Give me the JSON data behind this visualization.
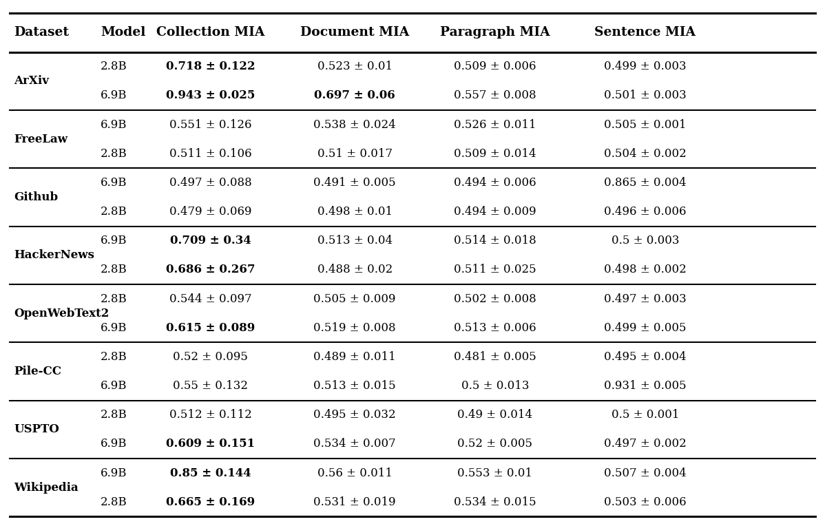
{
  "columns": [
    "Dataset",
    "Model",
    "Collection MIA",
    "Document MIA",
    "Paragraph MIA",
    "Sentence MIA"
  ],
  "rows": [
    {
      "dataset": "ArXiv",
      "entries": [
        {
          "model": "2.8B",
          "collection_mia": "0.718 ± 0.122",
          "collection_bold": true,
          "document_mia": "0.523 ± 0.01",
          "document_bold": false,
          "paragraph_mia": "0.509 ± 0.006",
          "paragraph_bold": false,
          "sentence_mia": "0.499 ± 0.003",
          "sentence_bold": false
        },
        {
          "model": "6.9B",
          "collection_mia": "0.943 ± 0.025",
          "collection_bold": true,
          "document_mia": "0.697 ± 0.06",
          "document_bold": true,
          "paragraph_mia": "0.557 ± 0.008",
          "paragraph_bold": false,
          "sentence_mia": "0.501 ± 0.003",
          "sentence_bold": false
        }
      ]
    },
    {
      "dataset": "FreeLaw",
      "entries": [
        {
          "model": "6.9B",
          "collection_mia": "0.551 ± 0.126",
          "collection_bold": false,
          "document_mia": "0.538 ± 0.024",
          "document_bold": false,
          "paragraph_mia": "0.526 ± 0.011",
          "paragraph_bold": false,
          "sentence_mia": "0.505 ± 0.001",
          "sentence_bold": false
        },
        {
          "model": "2.8B",
          "collection_mia": "0.511 ± 0.106",
          "collection_bold": false,
          "document_mia": "0.51 ± 0.017",
          "document_bold": false,
          "paragraph_mia": "0.509 ± 0.014",
          "paragraph_bold": false,
          "sentence_mia": "0.504 ± 0.002",
          "sentence_bold": false
        }
      ]
    },
    {
      "dataset": "Github",
      "entries": [
        {
          "model": "6.9B",
          "collection_mia": "0.497 ± 0.088",
          "collection_bold": false,
          "document_mia": "0.491 ± 0.005",
          "document_bold": false,
          "paragraph_mia": "0.494 ± 0.006",
          "paragraph_bold": false,
          "sentence_mia": "0.865 ± 0.004",
          "sentence_bold": false
        },
        {
          "model": "2.8B",
          "collection_mia": "0.479 ± 0.069",
          "collection_bold": false,
          "document_mia": "0.498 ± 0.01",
          "document_bold": false,
          "paragraph_mia": "0.494 ± 0.009",
          "paragraph_bold": false,
          "sentence_mia": "0.496 ± 0.006",
          "sentence_bold": false
        }
      ]
    },
    {
      "dataset": "HackerNews",
      "entries": [
        {
          "model": "6.9B",
          "collection_mia": "0.709 ± 0.34",
          "collection_bold": true,
          "document_mia": "0.513 ± 0.04",
          "document_bold": false,
          "paragraph_mia": "0.514 ± 0.018",
          "paragraph_bold": false,
          "sentence_mia": "0.5 ± 0.003",
          "sentence_bold": false
        },
        {
          "model": "2.8B",
          "collection_mia": "0.686 ± 0.267",
          "collection_bold": true,
          "document_mia": "0.488 ± 0.02",
          "document_bold": false,
          "paragraph_mia": "0.511 ± 0.025",
          "paragraph_bold": false,
          "sentence_mia": "0.498 ± 0.002",
          "sentence_bold": false
        }
      ]
    },
    {
      "dataset": "OpenWebText2",
      "entries": [
        {
          "model": "2.8B",
          "collection_mia": "0.544 ± 0.097",
          "collection_bold": false,
          "document_mia": "0.505 ± 0.009",
          "document_bold": false,
          "paragraph_mia": "0.502 ± 0.008",
          "paragraph_bold": false,
          "sentence_mia": "0.497 ± 0.003",
          "sentence_bold": false
        },
        {
          "model": "6.9B",
          "collection_mia": "0.615 ± 0.089",
          "collection_bold": true,
          "document_mia": "0.519 ± 0.008",
          "document_bold": false,
          "paragraph_mia": "0.513 ± 0.006",
          "paragraph_bold": false,
          "sentence_mia": "0.499 ± 0.005",
          "sentence_bold": false
        }
      ]
    },
    {
      "dataset": "Pile-CC",
      "entries": [
        {
          "model": "2.8B",
          "collection_mia": "0.52 ± 0.095",
          "collection_bold": false,
          "document_mia": "0.489 ± 0.011",
          "document_bold": false,
          "paragraph_mia": "0.481 ± 0.005",
          "paragraph_bold": false,
          "sentence_mia": "0.495 ± 0.004",
          "sentence_bold": false
        },
        {
          "model": "6.9B",
          "collection_mia": "0.55 ± 0.132",
          "collection_bold": false,
          "document_mia": "0.513 ± 0.015",
          "document_bold": false,
          "paragraph_mia": "0.5 ± 0.013",
          "paragraph_bold": false,
          "sentence_mia": "0.931 ± 0.005",
          "sentence_bold": false
        }
      ]
    },
    {
      "dataset": "USPTO",
      "entries": [
        {
          "model": "2.8B",
          "collection_mia": "0.512 ± 0.112",
          "collection_bold": false,
          "document_mia": "0.495 ± 0.032",
          "document_bold": false,
          "paragraph_mia": "0.49 ± 0.014",
          "paragraph_bold": false,
          "sentence_mia": "0.5 ± 0.001",
          "sentence_bold": false
        },
        {
          "model": "6.9B",
          "collection_mia": "0.609 ± 0.151",
          "collection_bold": true,
          "document_mia": "0.534 ± 0.007",
          "document_bold": false,
          "paragraph_mia": "0.52 ± 0.005",
          "paragraph_bold": false,
          "sentence_mia": "0.497 ± 0.002",
          "sentence_bold": false
        }
      ]
    },
    {
      "dataset": "Wikipedia",
      "entries": [
        {
          "model": "6.9B",
          "collection_mia": "0.85 ± 0.144",
          "collection_bold": true,
          "document_mia": "0.56 ± 0.011",
          "document_bold": false,
          "paragraph_mia": "0.553 ± 0.01",
          "paragraph_bold": false,
          "sentence_mia": "0.507 ± 0.004",
          "sentence_bold": false
        },
        {
          "model": "2.8B",
          "collection_mia": "0.665 ± 0.169",
          "collection_bold": true,
          "document_mia": "0.531 ± 0.019",
          "document_bold": false,
          "paragraph_mia": "0.534 ± 0.015",
          "paragraph_bold": false,
          "sentence_mia": "0.503 ± 0.006",
          "sentence_bold": false
        }
      ]
    }
  ],
  "header_fontsize": 13.5,
  "cell_fontsize": 12,
  "background_color": "#ffffff",
  "fig_width": 11.98,
  "fig_height": 7.64,
  "dpi": 100
}
